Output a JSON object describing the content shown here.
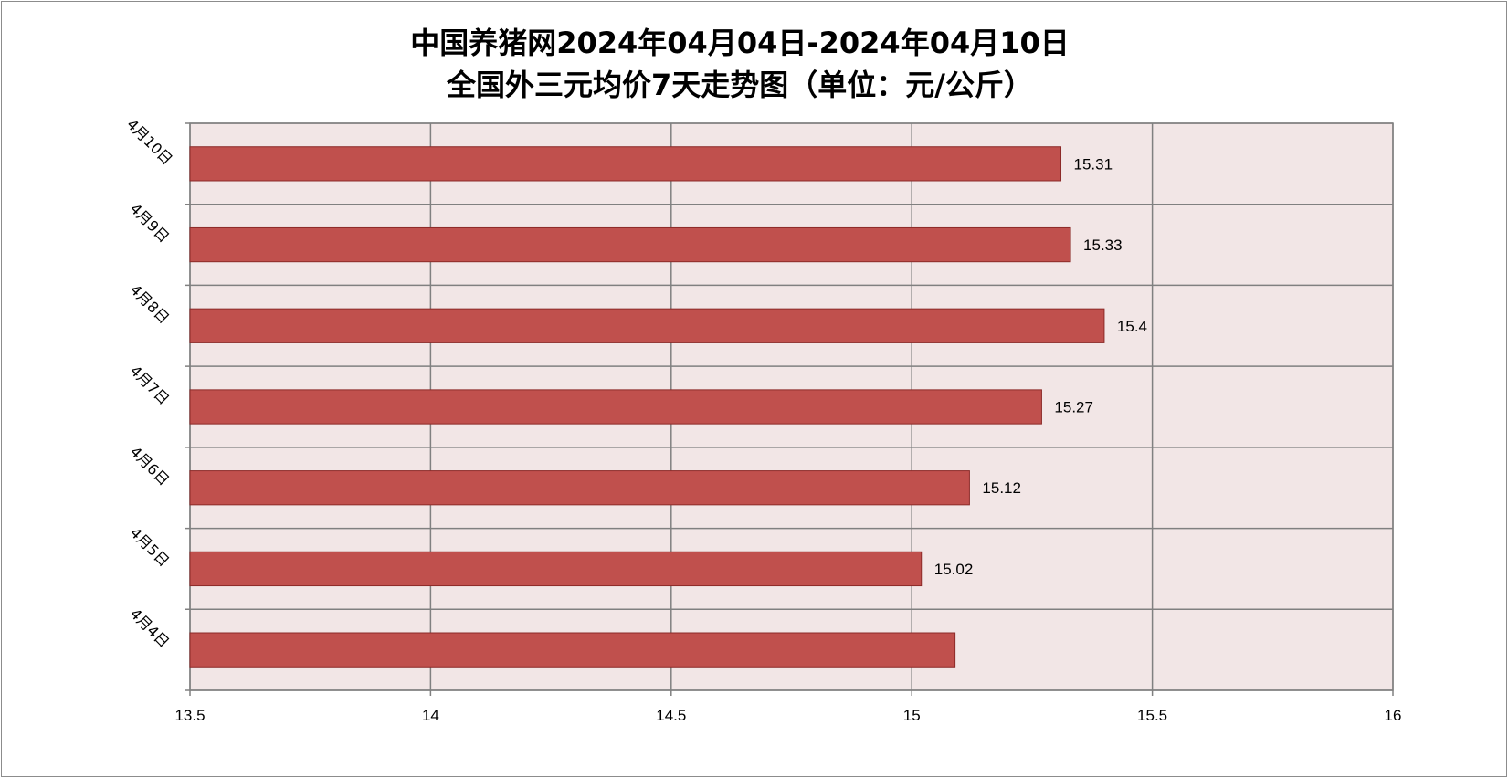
{
  "chart_data": {
    "type": "bar",
    "orientation": "horizontal",
    "title": [
      "中国养猪网2024年04月04日-2024年04月10日",
      "全国外三元均价7天走势图（单位：元/公斤）"
    ],
    "categories": [
      "4月4日",
      "4月5日",
      "4月6日",
      "4月7日",
      "4月8日",
      "4月9日",
      "4月10日"
    ],
    "values": [
      15.09,
      15.02,
      15.12,
      15.27,
      15.4,
      15.33,
      15.31
    ],
    "data_labels": [
      "",
      "15.02",
      "15.12",
      "15.27",
      "15.4",
      "15.33",
      "15.31"
    ],
    "xlim": [
      13.5,
      16
    ],
    "xticks": [
      "13.5",
      "14",
      "14.5",
      "15",
      "15.5",
      "16"
    ],
    "xtick_values": [
      13.5,
      14,
      14.5,
      15,
      15.5,
      16
    ],
    "xlabel": "",
    "ylabel": "",
    "grid": true,
    "legend": "none",
    "colors": {
      "bar": "#C0504D",
      "bar_border": "#8C2A28",
      "plot_bg": "#F2E6E6",
      "grid": "#808080"
    }
  }
}
